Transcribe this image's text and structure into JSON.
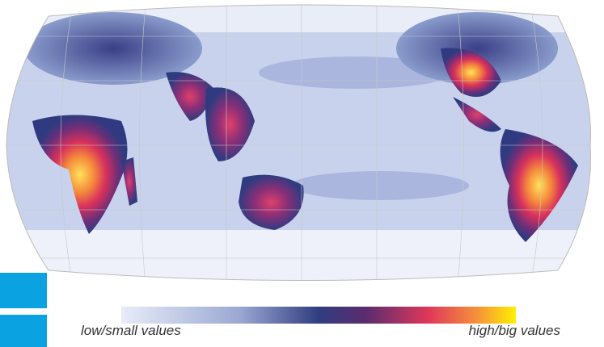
{
  "legend": {
    "low_label": "low/small values",
    "high_label": "high/big values"
  }
}
